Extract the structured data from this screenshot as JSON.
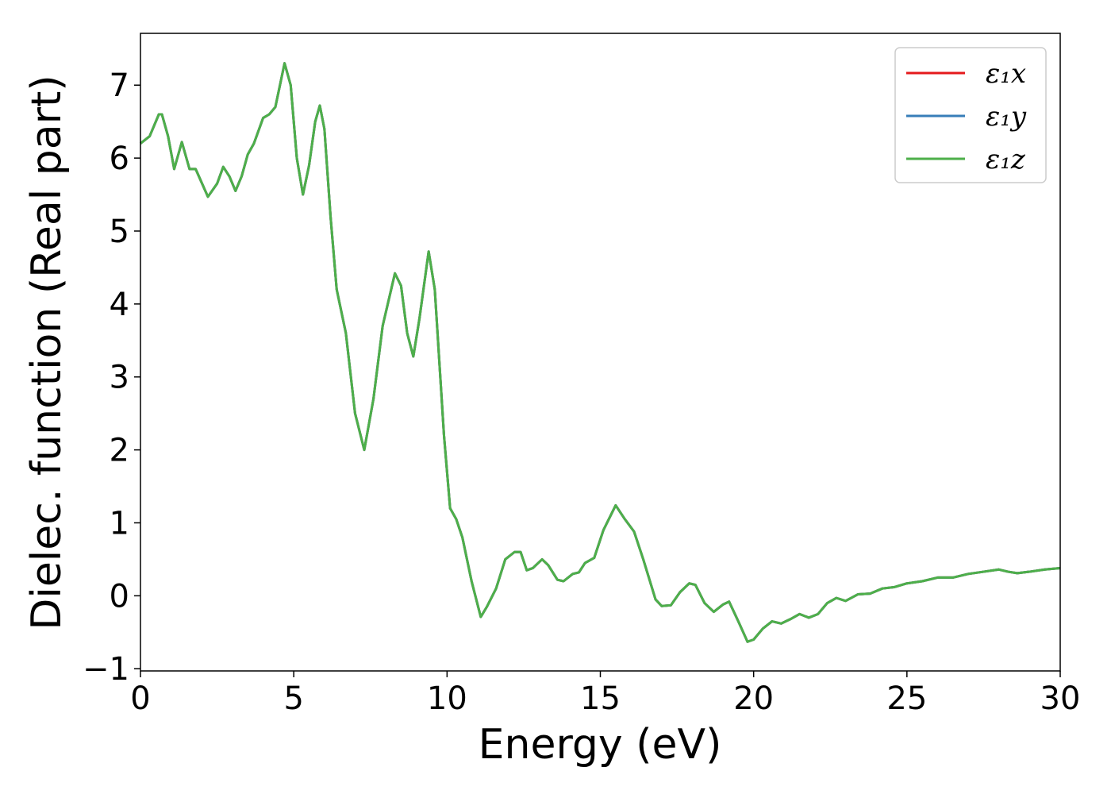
{
  "chart_data": {
    "type": "line",
    "xlabel": "Energy (eV)",
    "ylabel": "Dielec. function (Real part)",
    "xlim": [
      0,
      30
    ],
    "ylim": [
      -1.03,
      7.71
    ],
    "xticks": [
      0,
      5,
      10,
      15,
      20,
      25,
      30
    ],
    "yticks": [
      {
        "value": -1,
        "label": "−1"
      },
      0,
      1,
      2,
      3,
      4,
      5,
      6,
      7
    ],
    "legend": "upper right",
    "grid": false,
    "x": [
      0,
      0.3,
      0.6,
      0.7,
      0.9,
      1.1,
      1.35,
      1.6,
      1.8,
      2.2,
      2.5,
      2.7,
      2.9,
      3.1,
      3.3,
      3.5,
      3.7,
      4.0,
      4.2,
      4.4,
      4.7,
      4.9,
      5.1,
      5.3,
      5.5,
      5.7,
      5.85,
      6.0,
      6.2,
      6.4,
      6.7,
      7.0,
      7.3,
      7.6,
      7.9,
      8.3,
      8.5,
      8.7,
      8.9,
      9.1,
      9.4,
      9.6,
      9.9,
      10.1,
      10.3,
      10.5,
      10.8,
      11.1,
      11.3,
      11.6,
      11.9,
      12.2,
      12.4,
      12.6,
      12.8,
      13.1,
      13.3,
      13.6,
      13.8,
      14.1,
      14.3,
      14.5,
      14.8,
      15.1,
      15.5,
      15.8,
      16.1,
      16.4,
      16.8,
      17.0,
      17.3,
      17.6,
      17.9,
      18.1,
      18.4,
      18.7,
      19.0,
      19.2,
      19.5,
      19.8,
      20.0,
      20.3,
      20.6,
      20.9,
      21.2,
      21.5,
      21.8,
      22.1,
      22.4,
      22.7,
      23.0,
      23.4,
      23.8,
      24.2,
      24.6,
      25.0,
      25.5,
      26.0,
      26.5,
      27.0,
      27.5,
      28.0,
      28.3,
      28.6,
      29.0,
      29.5,
      30.0
    ],
    "series": [
      {
        "name": "ε₁x",
        "color": "#e41a1c",
        "values": [
          6.2,
          6.3,
          6.6,
          6.6,
          6.3,
          5.85,
          6.22,
          5.85,
          5.85,
          5.47,
          5.65,
          5.88,
          5.75,
          5.55,
          5.75,
          6.05,
          6.2,
          6.55,
          6.6,
          6.7,
          7.3,
          7.0,
          6.0,
          5.5,
          5.9,
          6.5,
          6.72,
          6.4,
          5.2,
          4.2,
          3.6,
          2.5,
          2.0,
          2.7,
          3.7,
          4.42,
          4.25,
          3.6,
          3.28,
          3.8,
          4.72,
          4.2,
          2.2,
          1.2,
          1.05,
          0.8,
          0.2,
          -0.29,
          -0.15,
          0.1,
          0.5,
          0.6,
          0.6,
          0.35,
          0.38,
          0.5,
          0.42,
          0.22,
          0.2,
          0.3,
          0.32,
          0.45,
          0.52,
          0.9,
          1.24,
          1.05,
          0.88,
          0.5,
          -0.05,
          -0.14,
          -0.13,
          0.05,
          0.17,
          0.15,
          -0.1,
          -0.22,
          -0.12,
          -0.08,
          -0.35,
          -0.63,
          -0.6,
          -0.45,
          -0.35,
          -0.38,
          -0.32,
          -0.25,
          -0.3,
          -0.25,
          -0.1,
          -0.03,
          -0.07,
          0.02,
          0.03,
          0.1,
          0.12,
          0.17,
          0.2,
          0.25,
          0.25,
          0.3,
          0.33,
          0.36,
          0.33,
          0.31,
          0.33,
          0.36,
          0.38
        ]
      },
      {
        "name": "ε₁y",
        "color": "#377eb8",
        "values": [
          6.2,
          6.3,
          6.6,
          6.6,
          6.3,
          5.85,
          6.22,
          5.85,
          5.85,
          5.47,
          5.65,
          5.88,
          5.75,
          5.55,
          5.75,
          6.05,
          6.2,
          6.55,
          6.6,
          6.7,
          7.3,
          7.0,
          6.0,
          5.5,
          5.9,
          6.5,
          6.72,
          6.4,
          5.2,
          4.2,
          3.6,
          2.5,
          2.0,
          2.7,
          3.7,
          4.42,
          4.25,
          3.6,
          3.28,
          3.8,
          4.72,
          4.2,
          2.2,
          1.2,
          1.05,
          0.8,
          0.2,
          -0.29,
          -0.15,
          0.1,
          0.5,
          0.6,
          0.6,
          0.35,
          0.38,
          0.5,
          0.42,
          0.22,
          0.2,
          0.3,
          0.32,
          0.45,
          0.52,
          0.9,
          1.24,
          1.05,
          0.88,
          0.5,
          -0.05,
          -0.14,
          -0.13,
          0.05,
          0.17,
          0.15,
          -0.1,
          -0.22,
          -0.12,
          -0.08,
          -0.35,
          -0.63,
          -0.6,
          -0.45,
          -0.35,
          -0.38,
          -0.32,
          -0.25,
          -0.3,
          -0.25,
          -0.1,
          -0.03,
          -0.07,
          0.02,
          0.03,
          0.1,
          0.12,
          0.17,
          0.2,
          0.25,
          0.25,
          0.3,
          0.33,
          0.36,
          0.33,
          0.31,
          0.33,
          0.36,
          0.38
        ]
      },
      {
        "name": "ε₁z",
        "color": "#4daf4a",
        "values": [
          6.2,
          6.3,
          6.6,
          6.6,
          6.3,
          5.85,
          6.22,
          5.85,
          5.85,
          5.47,
          5.65,
          5.88,
          5.75,
          5.55,
          5.75,
          6.05,
          6.2,
          6.55,
          6.6,
          6.7,
          7.3,
          7.0,
          6.0,
          5.5,
          5.9,
          6.5,
          6.72,
          6.4,
          5.2,
          4.2,
          3.6,
          2.5,
          2.0,
          2.7,
          3.7,
          4.42,
          4.25,
          3.6,
          3.28,
          3.8,
          4.72,
          4.2,
          2.2,
          1.2,
          1.05,
          0.8,
          0.2,
          -0.29,
          -0.15,
          0.1,
          0.5,
          0.6,
          0.6,
          0.35,
          0.38,
          0.5,
          0.42,
          0.22,
          0.2,
          0.3,
          0.32,
          0.45,
          0.52,
          0.9,
          1.24,
          1.05,
          0.88,
          0.5,
          -0.05,
          -0.14,
          -0.13,
          0.05,
          0.17,
          0.15,
          -0.1,
          -0.22,
          -0.12,
          -0.08,
          -0.35,
          -0.63,
          -0.6,
          -0.45,
          -0.35,
          -0.38,
          -0.32,
          -0.25,
          -0.3,
          -0.25,
          -0.1,
          -0.03,
          -0.07,
          0.02,
          0.03,
          0.1,
          0.12,
          0.17,
          0.2,
          0.25,
          0.25,
          0.3,
          0.33,
          0.36,
          0.33,
          0.31,
          0.33,
          0.36,
          0.38
        ]
      }
    ]
  }
}
